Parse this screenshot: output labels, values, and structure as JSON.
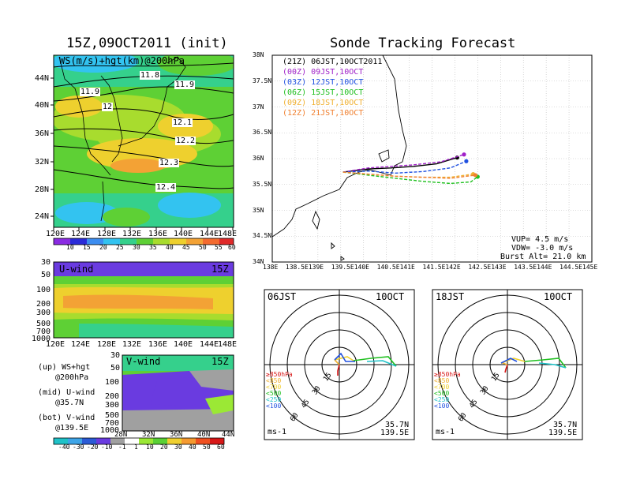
{
  "left_title": "15Z,09OCT2011 (init)",
  "right_title": "Sonde Tracking Forecast",
  "colors": {
    "scale1": [
      "#8a2be2",
      "#2b2bd8",
      "#3c8df0",
      "#33c3f0",
      "#35d08c",
      "#5ed035",
      "#a8dc2e",
      "#eed02e",
      "#f3a235",
      "#f36a2e",
      "#e02a2a"
    ],
    "scale2": [
      "#1fc2c8",
      "#3ea5e8",
      "#2b5bd6",
      "#6a3be0",
      "#a0a0a0",
      "#ffffff",
      "#9be835",
      "#5ad035",
      "#f0d030",
      "#f59a30",
      "#f05020",
      "#d81818"
    ],
    "series": [
      "#000000",
      "#a020c8",
      "#2050e0",
      "#20c020",
      "#f0b030",
      "#f08030"
    ]
  },
  "chart_data": [
    {
      "id": "map_ws_hgt",
      "type": "heatmap",
      "panel_label": "WS(m/s)+hgt(km)@200hPa",
      "x_ticks": [
        "120E",
        "124E",
        "128E",
        "132E",
        "136E",
        "140E",
        "144E",
        "148E"
      ],
      "y_ticks": [
        "44N",
        "40N",
        "36N",
        "32N",
        "28N",
        "24N"
      ],
      "contour_labels": [
        "11.8",
        "11.9",
        "11.9",
        "12",
        "12.1",
        "12.2",
        "12.3",
        "12.4"
      ],
      "colorbar_ticks": [
        "10",
        "15",
        "20",
        "25",
        "30",
        "35",
        "40",
        "45",
        "50",
        "55",
        "60"
      ]
    },
    {
      "id": "u_wind",
      "type": "heatmap",
      "panel_label": "U-wind",
      "time": "15Z",
      "y_ticks": [
        "30",
        "50",
        "100",
        "200",
        "300",
        "500",
        "700",
        "1000"
      ],
      "x_ticks": [
        "120E",
        "124E",
        "128E",
        "132E",
        "136E",
        "140E",
        "144E",
        "148E"
      ]
    },
    {
      "id": "v_wind",
      "type": "heatmap",
      "panel_label": "V-wind",
      "time": "15Z",
      "y_ticks": [
        "30",
        "50",
        "100",
        "200",
        "300",
        "500",
        "700",
        "1000"
      ],
      "x_ticks": [
        "28N",
        "32N",
        "36N",
        "40N",
        "44N"
      ],
      "colorbar_ticks": [
        "-40",
        "-30",
        "-20",
        "-10",
        "-1",
        "1",
        "10",
        "20",
        "30",
        "40",
        "50",
        "60"
      ]
    },
    {
      "id": "tracks",
      "type": "line",
      "xlim": [
        138,
        145
      ],
      "ylim": [
        34,
        38
      ],
      "x_ticks": [
        "138E",
        "138.5E",
        "139E",
        "139.5E",
        "140E",
        "140.5E",
        "141E",
        "141.5E",
        "142E",
        "142.5E",
        "143E",
        "143.5E",
        "144E",
        "144.5E",
        "145E"
      ],
      "y_ticks": [
        "38N",
        "37.5N",
        "37N",
        "36.5N",
        "36N",
        "35.5N",
        "35N",
        "34.5N",
        "34N"
      ],
      "legend": [
        "(21Z) 06JST,10OCT2011",
        "(00Z) 09JST,10OCT",
        "(03Z) 12JST,10OCT",
        "(06Z) 15JST,10OCT",
        "(09Z) 18JST,10OCT",
        "(12Z) 21JST,10OCT"
      ],
      "info": [
        "VUP= 4.5 m/s",
        "VDW= -3.0 m/s",
        "Burst Alt= 21.0 km"
      ],
      "series": [
        {
          "color": "#000000",
          "x": [
            139.55,
            140.1,
            140.6,
            141.1,
            141.6,
            142.05
          ],
          "y": [
            35.74,
            35.8,
            35.82,
            35.85,
            35.9,
            36.02
          ]
        },
        {
          "color": "#a020c8",
          "x": [
            139.55,
            140.1,
            140.6,
            141.1,
            141.7,
            142.2
          ],
          "y": [
            35.74,
            35.82,
            35.85,
            35.88,
            35.94,
            36.08
          ]
        },
        {
          "color": "#2050e0",
          "x": [
            139.55,
            140.1,
            140.7,
            141.3,
            141.9,
            142.25
          ],
          "y": [
            35.74,
            35.76,
            35.72,
            35.75,
            35.82,
            35.95
          ]
        },
        {
          "color": "#20c020",
          "x": [
            139.55,
            140.1,
            140.7,
            141.3,
            141.9,
            142.35,
            142.5
          ],
          "y": [
            35.74,
            35.68,
            35.62,
            35.56,
            35.52,
            35.55,
            35.65
          ]
        },
        {
          "color": "#f0b030",
          "x": [
            139.55,
            140.1,
            140.7,
            141.3,
            141.9,
            142.4
          ],
          "y": [
            35.74,
            35.7,
            35.66,
            35.64,
            35.64,
            35.7
          ]
        },
        {
          "color": "#f08030",
          "x": [
            139.55,
            140.1,
            140.7,
            141.3,
            141.9,
            142.45
          ],
          "y": [
            35.74,
            35.7,
            35.66,
            35.64,
            35.62,
            35.68
          ]
        }
      ]
    },
    {
      "id": "hodo_06",
      "type": "scatter",
      "time": "06JST",
      "date": "10OCT",
      "ring_labels": [
        "15",
        "30",
        "45",
        "60"
      ],
      "levels": [
        "≥850hPa",
        "<850",
        "<700",
        "<500",
        "<250",
        "<100"
      ],
      "units": "ms-1",
      "location": [
        "35.7N",
        "139.5E"
      ]
    },
    {
      "id": "hodo_18",
      "type": "scatter",
      "time": "18JST",
      "date": "10OCT",
      "ring_labels": [
        "15",
        "30",
        "45",
        "60"
      ],
      "levels": [
        "≥850hPa",
        "<850",
        "<700",
        "<500",
        "<250",
        "<100"
      ],
      "units": "ms-1",
      "location": [
        "35.7N",
        "139.5E"
      ]
    }
  ],
  "caption": {
    "lines": [
      "(up) WS+hgt",
      "@200hPa",
      "(mid) U-wind",
      "@35.7N",
      "(bot) V-wind",
      "@139.5E"
    ]
  }
}
